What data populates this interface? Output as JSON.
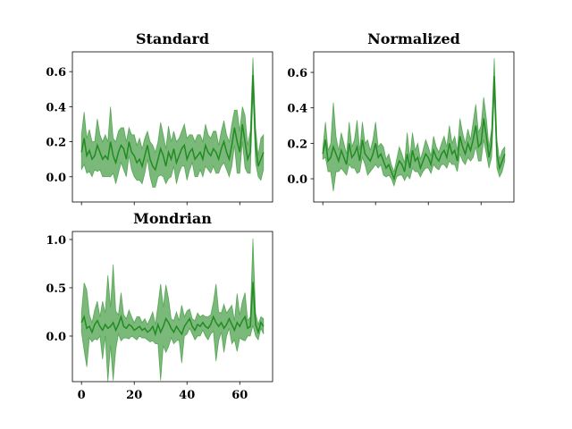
{
  "chart_data": [
    {
      "type": "line",
      "title": "Standard",
      "x": [
        0,
        1,
        2,
        3,
        4,
        5,
        6,
        7,
        8,
        9,
        10,
        11,
        12,
        13,
        14,
        15,
        16,
        17,
        18,
        19,
        20,
        21,
        22,
        23,
        24,
        25,
        26,
        27,
        28,
        29,
        30,
        31,
        32,
        33,
        34,
        35,
        36,
        37,
        38,
        39,
        40,
        41,
        42,
        43,
        44,
        45,
        46,
        47,
        48,
        49,
        50,
        51,
        52,
        53,
        54,
        55,
        56,
        57,
        58,
        59,
        60,
        61,
        62,
        63,
        64,
        65,
        66,
        67,
        68,
        69
      ],
      "series": [
        {
          "color": "#228b22",
          "values": [
            0.14,
            0.22,
            0.12,
            0.15,
            0.1,
            0.12,
            0.18,
            0.14,
            0.1,
            0.12,
            0.1,
            0.2,
            0.12,
            0.08,
            0.14,
            0.18,
            0.16,
            0.1,
            0.2,
            0.14,
            0.12,
            0.08,
            0.1,
            0.06,
            0.12,
            0.18,
            0.1,
            0.06,
            0.04,
            0.1,
            0.16,
            0.12,
            0.06,
            0.14,
            0.1,
            0.16,
            0.08,
            0.12,
            0.16,
            0.18,
            0.1,
            0.14,
            0.16,
            0.1,
            0.12,
            0.14,
            0.1,
            0.18,
            0.14,
            0.12,
            0.16,
            0.14,
            0.1,
            0.16,
            0.2,
            0.14,
            0.1,
            0.18,
            0.28,
            0.2,
            0.14,
            0.3,
            0.2,
            0.1,
            0.14,
            0.58,
            0.18,
            0.06,
            0.1,
            0.14
          ],
          "errors": [
            0.1,
            0.15,
            0.1,
            0.12,
            0.1,
            0.08,
            0.15,
            0.1,
            0.1,
            0.12,
            0.1,
            0.2,
            0.1,
            0.12,
            0.12,
            0.1,
            0.12,
            0.1,
            0.08,
            0.1,
            0.12,
            0.1,
            0.12,
            0.1,
            0.1,
            0.08,
            0.1,
            0.12,
            0.1,
            0.1,
            0.15,
            0.12,
            0.1,
            0.15,
            0.1,
            0.1,
            0.12,
            0.1,
            0.1,
            0.12,
            0.12,
            0.1,
            0.08,
            0.1,
            0.12,
            0.1,
            0.1,
            0.12,
            0.1,
            0.1,
            0.1,
            0.12,
            0.08,
            0.1,
            0.12,
            0.1,
            0.1,
            0.12,
            0.1,
            0.18,
            0.12,
            0.1,
            0.15,
            0.08,
            0.12,
            0.1,
            0.1,
            0.06,
            0.12,
            0.1
          ]
        }
      ],
      "xlim": [
        -3.45,
        72.45
      ],
      "ylim": [
        -0.144,
        0.713
      ],
      "xticks": [
        0,
        20,
        40,
        60
      ],
      "xtick_labels": false,
      "yticks": [
        {
          "value": 0,
          "label": "0.0"
        },
        0.2,
        0.4,
        0.6
      ]
    },
    {
      "type": "line",
      "title": "Normalized",
      "x": [
        0,
        1,
        2,
        3,
        4,
        5,
        6,
        7,
        8,
        9,
        10,
        11,
        12,
        13,
        14,
        15,
        16,
        17,
        18,
        19,
        20,
        21,
        22,
        23,
        24,
        25,
        26,
        27,
        28,
        29,
        30,
        31,
        32,
        33,
        34,
        35,
        36,
        37,
        38,
        39,
        40,
        41,
        42,
        43,
        44,
        45,
        46,
        47,
        48,
        49,
        50,
        51,
        52,
        53,
        54,
        55,
        56,
        57,
        58,
        59,
        60,
        61,
        62,
        63,
        64,
        65,
        66,
        67,
        68,
        69
      ],
      "series": [
        {
          "color": "#228b22",
          "values": [
            0.14,
            0.22,
            0.1,
            0.12,
            0.18,
            0.14,
            0.1,
            0.16,
            0.12,
            0.08,
            0.2,
            0.12,
            0.14,
            0.18,
            0.1,
            0.22,
            0.14,
            0.12,
            0.1,
            0.14,
            0.2,
            0.12,
            0.14,
            0.1,
            0.06,
            0.08,
            0.04,
            0.0,
            0.06,
            0.1,
            0.08,
            0.04,
            0.14,
            0.06,
            0.16,
            0.1,
            0.12,
            0.06,
            0.1,
            0.14,
            0.12,
            0.08,
            0.16,
            0.12,
            0.1,
            0.14,
            0.16,
            0.12,
            0.2,
            0.14,
            0.16,
            0.1,
            0.24,
            0.18,
            0.14,
            0.2,
            0.16,
            0.22,
            0.3,
            0.18,
            0.2,
            0.34,
            0.24,
            0.12,
            0.2,
            0.58,
            0.14,
            0.06,
            0.1,
            0.14
          ],
          "errors": [
            0.03,
            0.1,
            0.06,
            0.08,
            0.25,
            0.1,
            0.06,
            0.1,
            0.08,
            0.06,
            0.12,
            0.06,
            0.08,
            0.15,
            0.06,
            0.1,
            0.06,
            0.1,
            0.06,
            0.08,
            0.12,
            0.06,
            0.06,
            0.08,
            0.05,
            0.06,
            0.04,
            0.04,
            0.05,
            0.08,
            0.06,
            0.05,
            0.12,
            0.06,
            0.1,
            0.06,
            0.08,
            0.05,
            0.06,
            0.08,
            0.06,
            0.05,
            0.08,
            0.06,
            0.05,
            0.06,
            0.08,
            0.06,
            0.1,
            0.06,
            0.08,
            0.06,
            0.1,
            0.08,
            0.06,
            0.08,
            0.06,
            0.1,
            0.12,
            0.08,
            0.1,
            0.12,
            0.1,
            0.06,
            0.08,
            0.1,
            0.08,
            0.05,
            0.06,
            0.04
          ]
        }
      ],
      "xlim": [
        -3.45,
        72.45
      ],
      "ylim": [
        -0.131,
        0.716
      ],
      "xticks": [
        0,
        20,
        40,
        60
      ],
      "xtick_labels": false,
      "yticks": [
        {
          "value": 0,
          "label": "0.0"
        },
        0.2,
        0.4,
        0.6
      ]
    },
    {
      "type": "line",
      "title": "Mondrian",
      "x": [
        0,
        1,
        2,
        3,
        4,
        5,
        6,
        7,
        8,
        9,
        10,
        11,
        12,
        13,
        14,
        15,
        16,
        17,
        18,
        19,
        20,
        21,
        22,
        23,
        24,
        25,
        26,
        27,
        28,
        29,
        30,
        31,
        32,
        33,
        34,
        35,
        36,
        37,
        38,
        39,
        40,
        41,
        42,
        43,
        44,
        45,
        46,
        47,
        48,
        49,
        50,
        51,
        52,
        53,
        54,
        55,
        56,
        57,
        58,
        59,
        60,
        61,
        62,
        63,
        64,
        65,
        66,
        67,
        68,
        69
      ],
      "series": [
        {
          "color": "#228b22",
          "values": [
            0.14,
            0.2,
            0.08,
            0.1,
            0.04,
            0.12,
            0.16,
            0.1,
            0.06,
            0.12,
            0.08,
            0.1,
            0.14,
            0.06,
            0.12,
            0.2,
            0.1,
            0.08,
            0.12,
            0.1,
            0.06,
            0.08,
            0.1,
            0.06,
            0.08,
            0.04,
            0.06,
            0.1,
            0.02,
            0.12,
            0.04,
            0.1,
            0.18,
            0.14,
            0.08,
            0.04,
            0.1,
            0.06,
            0.02,
            0.1,
            0.14,
            0.18,
            0.1,
            0.06,
            0.12,
            0.1,
            0.14,
            0.1,
            0.08,
            0.12,
            0.2,
            0.14,
            0.1,
            0.14,
            0.08,
            0.12,
            0.18,
            0.12,
            0.06,
            0.14,
            0.1,
            0.16,
            0.2,
            0.08,
            0.1,
            0.56,
            0.12,
            0.04,
            0.14,
            0.1
          ],
          "errors": [
            0.1,
            0.35,
            0.4,
            0.12,
            0.1,
            0.15,
            0.2,
            0.1,
            0.3,
            0.12,
            0.55,
            0.2,
            0.6,
            0.2,
            0.1,
            0.25,
            0.12,
            0.1,
            0.15,
            0.1,
            0.08,
            0.12,
            0.1,
            0.08,
            0.1,
            0.08,
            0.12,
            0.15,
            0.1,
            0.2,
            0.5,
            0.2,
            0.35,
            0.25,
            0.1,
            0.12,
            0.15,
            0.1,
            0.3,
            0.1,
            0.12,
            0.1,
            0.08,
            0.1,
            0.12,
            0.1,
            0.08,
            0.1,
            0.12,
            0.1,
            0.15,
            0.4,
            0.15,
            0.1,
            0.25,
            0.12,
            0.1,
            0.2,
            0.1,
            0.3,
            0.12,
            0.2,
            0.25,
            0.08,
            0.1,
            0.45,
            0.12,
            0.08,
            0.06,
            0.08
          ]
        }
      ],
      "xlim": [
        -3.45,
        72.45
      ],
      "ylim": [
        -0.472,
        1.083
      ],
      "xticks": [
        0,
        20,
        40,
        60
      ],
      "xtick_labels": true,
      "yticks": [
        {
          "value": 0,
          "label": "0.0"
        },
        {
          "value": 0.5,
          "label": "0.5"
        },
        {
          "value": 1,
          "label": "1.0"
        }
      ]
    }
  ]
}
